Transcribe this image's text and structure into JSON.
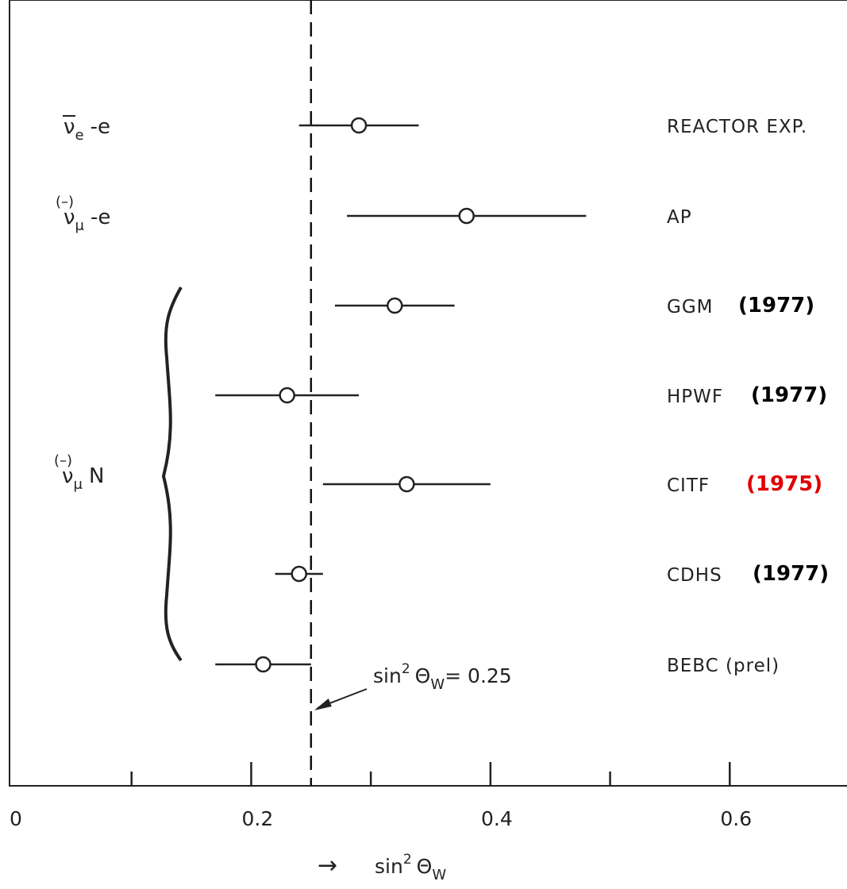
{
  "chart_data": {
    "type": "scatter",
    "xlim": [
      0,
      0.7
    ],
    "x_ticks_major": [
      0,
      0.2,
      0.4,
      0.6
    ],
    "x_ticks_minor": [
      0.1,
      0.3,
      0.5
    ],
    "x_tick_labels": [
      "0",
      "0.2",
      "0.4",
      "0.6"
    ],
    "xlabel": {
      "arrow": "→",
      "main": "sin",
      "sup": "2",
      "theta": "Θ",
      "sub": "W"
    },
    "reference_line": {
      "x": 0.25,
      "label": {
        "main": "sin",
        "sup": "2",
        "theta": "Θ",
        "sub": "W",
        "value": "= 0.25"
      }
    },
    "processes": [
      {
        "text": "ν",
        "overbar": true,
        "paren_bar": false,
        "sub": "e",
        "suffix": "-e",
        "rows": [
          0
        ]
      },
      {
        "text": "ν",
        "overbar": false,
        "paren_bar": true,
        "paren_text": "(–)",
        "sub": "μ",
        "suffix": "-e",
        "rows": [
          1
        ]
      },
      {
        "text": "ν",
        "overbar": false,
        "paren_bar": true,
        "paren_text": "(–)",
        "sub": "μ",
        "suffix": "N",
        "rows": [
          2,
          3,
          4,
          5,
          6
        ]
      }
    ],
    "points": [
      {
        "experiment": "REACTOR EXP.",
        "year": "",
        "year_color": "#000000",
        "value": 0.29,
        "err_low": 0.24,
        "err_high": 0.34
      },
      {
        "experiment": "AP",
        "year": "",
        "year_color": "#000000",
        "value": 0.38,
        "err_low": 0.28,
        "err_high": 0.48
      },
      {
        "experiment": "GGM",
        "year": "(1977)",
        "year_color": "#000000",
        "value": 0.32,
        "err_low": 0.27,
        "err_high": 0.37
      },
      {
        "experiment": "HPWF",
        "year": "(1977)",
        "year_color": "#000000",
        "value": 0.23,
        "err_low": 0.17,
        "err_high": 0.29
      },
      {
        "experiment": "CITF",
        "year": "(1975)",
        "year_color": "#e00000",
        "value": 0.33,
        "err_low": 0.26,
        "err_high": 0.4
      },
      {
        "experiment": "CDHS",
        "year": "(1977)",
        "year_color": "#000000",
        "value": 0.24,
        "err_low": 0.22,
        "err_high": 0.26
      },
      {
        "experiment": "BEBC (prel)",
        "year": "",
        "year_color": "#000000",
        "value": 0.21,
        "err_low": 0.17,
        "err_high": 0.25
      }
    ]
  }
}
